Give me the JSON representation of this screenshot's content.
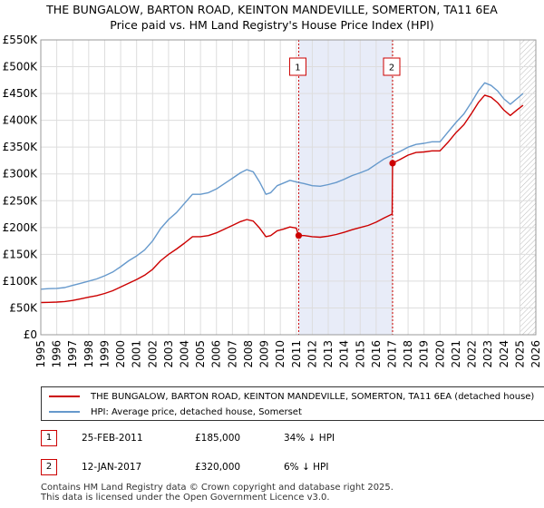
{
  "title": {
    "line1": "THE BUNGALOW, BARTON ROAD, KEINTON MANDEVILLE, SOMERTON, TA11 6EA",
    "line2": "Price paid vs. HM Land Registry's House Price Index (HPI)"
  },
  "colors": {
    "property": "#cc0000",
    "hpi": "#6699cc",
    "shade": "#e8ecf8",
    "grid": "#dddddd"
  },
  "chart_data": {
    "type": "line",
    "title": "Price paid vs. HM Land Registry's House Price Index (HPI)",
    "xlim": [
      1995,
      2026
    ],
    "ylim": [
      0,
      550000
    ],
    "y_ticks": [
      {
        "value": 0,
        "label": "£0"
      },
      {
        "value": 50000,
        "label": "£50K"
      },
      {
        "value": 100000,
        "label": "£100K"
      },
      {
        "value": 150000,
        "label": "£150K"
      },
      {
        "value": 200000,
        "label": "£200K"
      },
      {
        "value": 250000,
        "label": "£250K"
      },
      {
        "value": 300000,
        "label": "£300K"
      },
      {
        "value": 350000,
        "label": "£350K"
      },
      {
        "value": 400000,
        "label": "£400K"
      },
      {
        "value": 450000,
        "label": "£450K"
      },
      {
        "value": 500000,
        "label": "£500K"
      },
      {
        "value": 550000,
        "label": "£550K"
      }
    ],
    "x_ticks": [
      "1995",
      "1996",
      "1997",
      "1998",
      "1999",
      "2000",
      "2001",
      "2002",
      "2003",
      "2004",
      "2005",
      "2006",
      "2007",
      "2008",
      "2009",
      "2010",
      "2011",
      "2012",
      "2013",
      "2014",
      "2015",
      "2016",
      "2017",
      "2018",
      "2019",
      "2020",
      "2021",
      "2022",
      "2023",
      "2024",
      "2025",
      "2026"
    ],
    "grid": true,
    "series": [
      {
        "name": "HPI: Average price, detached house, Somerset",
        "x": [
          1995.0,
          1995.5,
          1996.0,
          1996.5,
          1997.0,
          1997.5,
          1998.0,
          1998.5,
          1999.0,
          1999.5,
          2000.0,
          2000.5,
          2001.0,
          2001.5,
          2002.0,
          2002.5,
          2003.0,
          2003.5,
          2004.0,
          2004.5,
          2005.0,
          2005.5,
          2006.0,
          2006.5,
          2007.0,
          2007.5,
          2007.9,
          2008.3,
          2008.7,
          2009.1,
          2009.4,
          2009.8,
          2010.2,
          2010.6,
          2011.0,
          2011.5,
          2012.0,
          2012.5,
          2013.0,
          2013.5,
          2014.0,
          2014.5,
          2015.0,
          2015.5,
          2016.0,
          2016.5,
          2017.0,
          2017.5,
          2018.0,
          2018.5,
          2019.0,
          2019.5,
          2020.0,
          2020.5,
          2021.0,
          2021.5,
          2022.0,
          2022.4,
          2022.8,
          2023.2,
          2023.6,
          2024.0,
          2024.4,
          2024.8,
          2025.2
        ],
        "values": [
          85000,
          86000,
          86500,
          88000,
          92000,
          96000,
          100000,
          104000,
          110000,
          117000,
          127000,
          138000,
          147000,
          158000,
          175000,
          198000,
          215000,
          228000,
          245000,
          262000,
          262000,
          265000,
          272000,
          282000,
          292000,
          302000,
          308000,
          304000,
          285000,
          262000,
          265000,
          278000,
          283000,
          288000,
          285000,
          282000,
          278000,
          277000,
          280000,
          284000,
          290000,
          297000,
          302000,
          308000,
          318000,
          328000,
          335000,
          342000,
          350000,
          355000,
          357000,
          360000,
          360000,
          378000,
          396000,
          412000,
          435000,
          455000,
          470000,
          465000,
          455000,
          440000,
          430000,
          440000,
          450000
        ]
      },
      {
        "name": "THE BUNGALOW, BARTON ROAD, KEINTON MANDEVILLE, SOMERTON, TA11 6EA (detached house)",
        "x": [
          1995.0,
          1995.5,
          1996.0,
          1996.5,
          1997.0,
          1997.5,
          1998.0,
          1998.5,
          1999.0,
          1999.5,
          2000.0,
          2000.5,
          2001.0,
          2001.5,
          2002.0,
          2002.5,
          2003.0,
          2003.5,
          2004.0,
          2004.5,
          2005.0,
          2005.5,
          2006.0,
          2006.5,
          2007.0,
          2007.5,
          2007.9,
          2008.3,
          2008.7,
          2009.1,
          2009.4,
          2009.8,
          2010.2,
          2010.6,
          2011.0,
          2011.15,
          2011.5,
          2012.0,
          2012.5,
          2013.0,
          2013.5,
          2014.0,
          2014.5,
          2015.0,
          2015.5,
          2016.0,
          2016.5,
          2017.0,
          2017.03,
          2017.5,
          2018.0,
          2018.5,
          2019.0,
          2019.5,
          2020.0,
          2020.5,
          2021.0,
          2021.5,
          2022.0,
          2022.4,
          2022.8,
          2023.2,
          2023.6,
          2024.0,
          2024.4,
          2024.8,
          2025.2
        ],
        "values": [
          60000,
          60500,
          61000,
          62000,
          64000,
          67000,
          70000,
          73000,
          77000,
          82000,
          89000,
          96000,
          103000,
          111000,
          122000,
          138000,
          150000,
          160000,
          171000,
          183000,
          183000,
          185000,
          190000,
          197000,
          204000,
          211000,
          215000,
          212000,
          199000,
          183000,
          185000,
          194000,
          197000,
          201000,
          199000,
          185000,
          185000,
          183000,
          182000,
          184000,
          187000,
          191000,
          196000,
          200000,
          204000,
          210000,
          218000,
          225000,
          320000,
          327000,
          335000,
          340000,
          341000,
          343000,
          343000,
          359000,
          377000,
          392000,
          414000,
          433000,
          447000,
          443000,
          433000,
          419000,
          409000,
          419000,
          428000
        ]
      }
    ],
    "sales": [
      {
        "id": "1",
        "x": 2011.15,
        "value": 185000
      },
      {
        "id": "2",
        "x": 2017.03,
        "value": 320000
      }
    ],
    "shaded_region": [
      2011.15,
      2017.03
    ],
    "hatched_from": 2025.0
  },
  "legend": [
    {
      "label": "THE BUNGALOW, BARTON ROAD, KEINTON MANDEVILLE, SOMERTON, TA11 6EA (detached house)",
      "color": "#cc0000"
    },
    {
      "label": "HPI: Average price, detached house, Somerset",
      "color": "#6699cc"
    }
  ],
  "sales_table": [
    {
      "num": "1",
      "date": "25-FEB-2011",
      "price": "£185,000",
      "hpi": "34% ↓ HPI"
    },
    {
      "num": "2",
      "date": "12-JAN-2017",
      "price": "£320,000",
      "hpi": "6% ↓ HPI"
    }
  ],
  "footer": {
    "line1": "Contains HM Land Registry data © Crown copyright and database right 2025.",
    "line2": "This data is licensed under the Open Government Licence v3.0."
  }
}
